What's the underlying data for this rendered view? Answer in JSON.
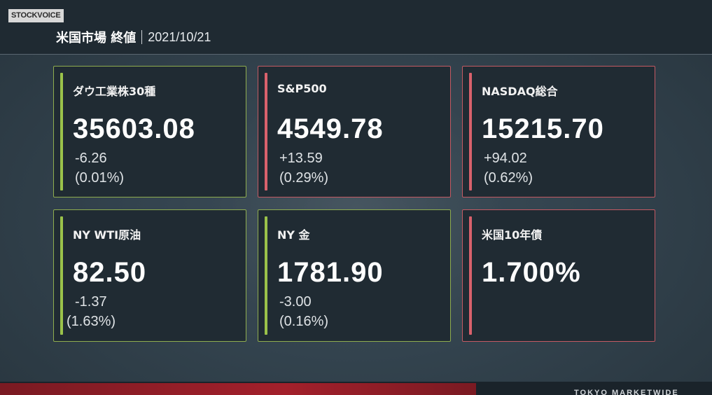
{
  "brand": "STOCKVOICE",
  "header": {
    "title": "米国市場 終値",
    "date": "2021/10/21"
  },
  "cards": [
    {
      "name": "ダウ工業株30種",
      "value": "35603.08",
      "change": "-6.26",
      "pct": "(0.01%)",
      "direction": "down"
    },
    {
      "name": "S&P500",
      "value": "4549.78",
      "change": "+13.59",
      "pct": "(0.29%)",
      "direction": "up"
    },
    {
      "name": "NASDAQ総合",
      "value": "15215.70",
      "change": "+94.02",
      "pct": "(0.62%)",
      "direction": "up"
    },
    {
      "name": "NY WTI原油",
      "value": "82.50",
      "change": "-1.37",
      "pct": "(1.63%)",
      "direction": "down"
    },
    {
      "name": "NY 金",
      "value": "1781.90",
      "change": "-3.00",
      "pct": "(0.16%)",
      "direction": "down"
    },
    {
      "name": "米国10年債",
      "value": "1.700%",
      "direction": "up"
    }
  ],
  "footer": {
    "text": "TOKYO MARKETWIDE"
  },
  "colors": {
    "up": "#d9616c",
    "down": "#9ac24a",
    "card_bg": "#202b33"
  }
}
